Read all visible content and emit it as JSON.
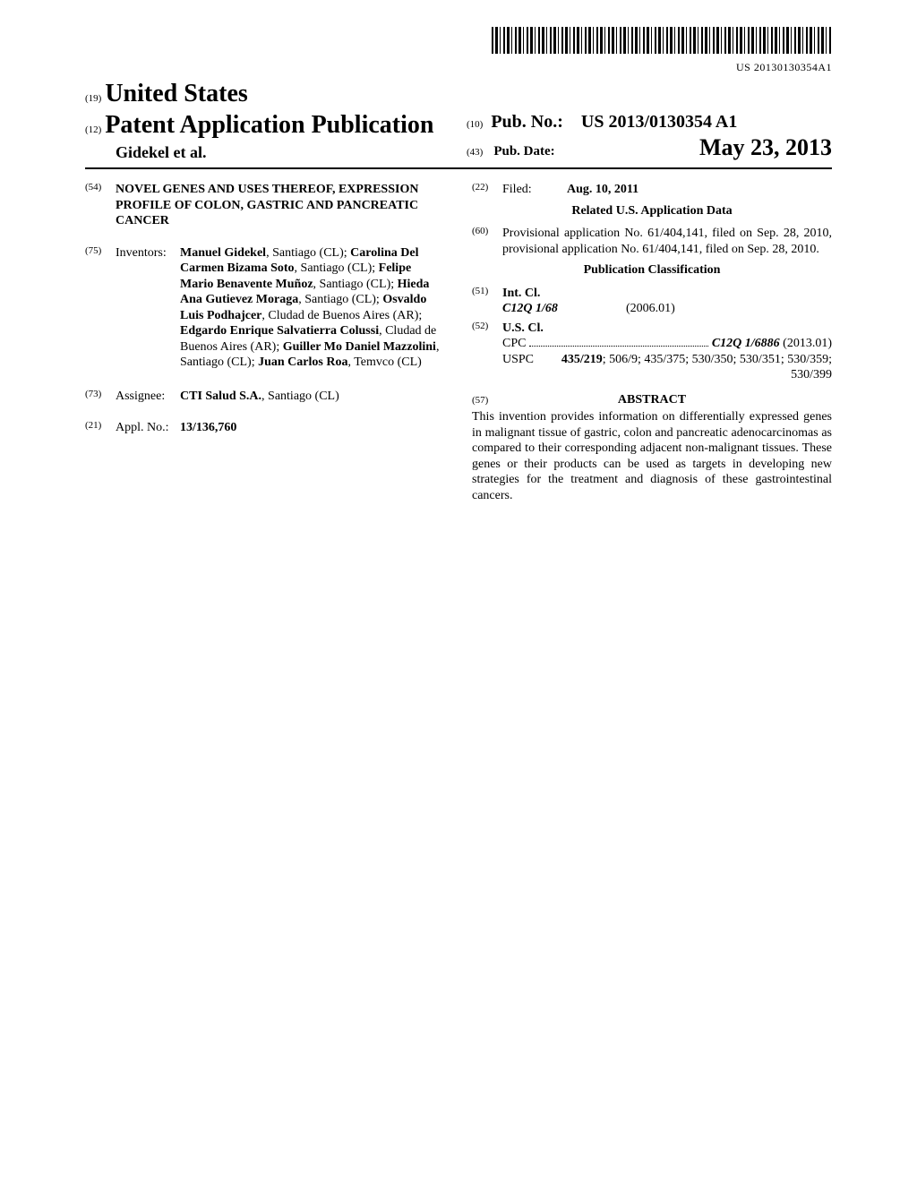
{
  "barcode": {
    "label": "US 20130130354A1"
  },
  "header": {
    "country_inid": "(19)",
    "country": "United States",
    "pub_inid": "(12)",
    "pub_type": "Patent Application Publication",
    "author_line": "Gidekel et al.",
    "pubno_inid": "(10)",
    "pubno_label": "Pub. No.:",
    "pubno": "US 2013/0130354 A1",
    "pubdate_inid": "(43)",
    "pubdate_label": "Pub. Date:",
    "pubdate": "May 23, 2013"
  },
  "left": {
    "title_inid": "(54)",
    "title": "NOVEL GENES AND USES THEREOF, EXPRESSION PROFILE OF COLON, GASTRIC AND PANCREATIC CANCER",
    "inventors_inid": "(75)",
    "inventors_label": "Inventors:",
    "inventors_html": "<b>Manuel Gidekel</b>, Santiago (CL); <b>Carolina Del Carmen Bizama Soto</b>, Santiago (CL); <b>Felipe Mario Benavente Muñoz</b>, Santiago (CL); <b>Hieda Ana Gutievez Moraga</b>, Santiago (CL); <b>Osvaldo Luis Podhajcer</b>, Cludad de Buenos Aires (AR); <b>Edgardo Enrique Salvatierra Colussi</b>, Cludad de Buenos Aires (AR); <b>Guiller Mo Daniel Mazzolini</b>, Santiago (CL); <b>Juan Carlos Roa</b>, Temvco (CL)",
    "assignee_inid": "(73)",
    "assignee_label": "Assignee:",
    "assignee_name": "CTI Salud S.A.",
    "assignee_loc": ", Santiago (CL)",
    "applno_inid": "(21)",
    "applno_label": "Appl. No.:",
    "applno": "13/136,760"
  },
  "right": {
    "filed_inid": "(22)",
    "filed_label": "Filed:",
    "filed": "Aug. 10, 2011",
    "related_heading": "Related U.S. Application Data",
    "prov_inid": "(60)",
    "prov_text": "Provisional application No. 61/404,141, filed on Sep. 28, 2010, provisional application No. 61/404,141, filed on Sep. 28, 2010.",
    "pubclass_heading": "Publication Classification",
    "intcl_inid": "(51)",
    "intcl_label": "Int. Cl.",
    "intcl_code": "C12Q 1/68",
    "intcl_year": "(2006.01)",
    "uscl_inid": "(52)",
    "uscl_label": "U.S. Cl.",
    "cpc_label": "CPC",
    "cpc_value": "C12Q 1/6886",
    "cpc_year": "(2013.01)",
    "uspc_label": "USPC",
    "uspc_value": "435/219; 506/9; 435/375; 530/350; 530/351; 530/359; 530/399",
    "abstract_inid": "(57)",
    "abstract_heading": "ABSTRACT",
    "abstract_text": "This invention provides information on differentially expressed genes in malignant tissue of gastric, colon and pancreatic adenocarcinomas as compared to their corresponding adjacent non-malignant tissues. These genes or their products can be used as targets in developing new strategies for the treatment and diagnosis of these gastrointestinal cancers."
  }
}
